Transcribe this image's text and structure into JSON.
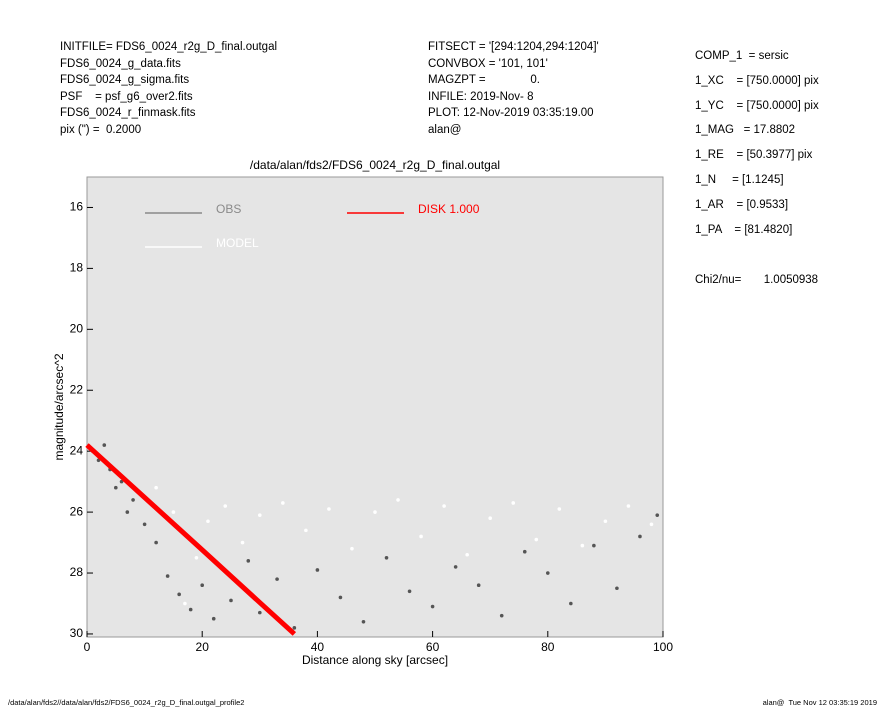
{
  "info_left": [
    "INITFILE= FDS6_0024_r2g_D_final.outgal",
    "FDS6_0024_g_data.fits",
    "FDS6_0024_g_sigma.fits",
    "PSF    = psf_g6_over2.fits",
    "FDS6_0024_r_finmask.fits",
    "pix (\") =  0.2000"
  ],
  "info_middle": [
    "FITSECT = '[294:1204,294:1204]'",
    "CONVBOX = '101, 101'",
    "MAGZPT =              0.",
    "INFILE: 2019-Nov- 8",
    "PLOT: 12-Nov-2019 03:35:19.00",
    "alan@"
  ],
  "info_right": [
    "COMP_1  = sersic",
    "1_XC    = [750.0000] pix",
    "1_YC    = [750.0000] pix",
    "1_MAG   = 17.8802",
    "1_RE    = [50.3977] pix",
    "1_N     = [1.1245]",
    "1_AR    = [0.9533]",
    "1_PA    = [81.4820]"
  ],
  "chi2": "Chi2/nu=       1.0050938",
  "footer_left": "/data/alan/fds2//data/alan/fds2/FDS6_0024_r2g_D_final.outgal_profile2",
  "footer_right": "alan@  Tue Nov 12 03:35:19 2019",
  "chart_data": {
    "type": "scatter",
    "title": "/data/alan/fds2/FDS6_0024_r2g_D_final.outgal",
    "x_label": "Distance along sky [arcsec]",
    "y_label": "magnitude/arcsec^2",
    "xlim": [
      0,
      100
    ],
    "xticks": [
      0,
      20,
      40,
      60,
      80,
      100
    ],
    "ylim": [
      30.1,
      15
    ],
    "yticks": [
      16,
      18,
      20,
      22,
      24,
      26,
      28,
      30
    ],
    "series": [
      {
        "name": "OBS",
        "color": "#555555",
        "mode": "points",
        "x": [
          1,
          2,
          3,
          4,
          5,
          6,
          7,
          8,
          10,
          12,
          14,
          16,
          18,
          20,
          22,
          25,
          28,
          30,
          33,
          36,
          40,
          44,
          48,
          52,
          56,
          60,
          64,
          68,
          72,
          76,
          80,
          84,
          88,
          92,
          96,
          99
        ],
        "values": [
          24.0,
          24.3,
          23.8,
          24.6,
          25.2,
          25.0,
          26.0,
          25.6,
          26.4,
          27.0,
          28.1,
          28.7,
          29.2,
          28.4,
          29.5,
          28.9,
          27.6,
          29.3,
          28.2,
          29.8,
          27.9,
          28.8,
          29.6,
          27.5,
          28.6,
          29.1,
          27.8,
          28.4,
          29.4,
          27.3,
          28.0,
          29.0,
          27.1,
          28.5,
          26.8,
          26.1
        ]
      },
      {
        "name": "MODEL",
        "color": "#ffffff",
        "mode": "points",
        "x": [
          12,
          15,
          17,
          19,
          21,
          24,
          27,
          30,
          34,
          38,
          42,
          46,
          50,
          54,
          58,
          62,
          66,
          70,
          74,
          78,
          82,
          86,
          90,
          94,
          98
        ],
        "values": [
          25.2,
          26.0,
          29.0,
          27.5,
          26.3,
          25.8,
          27.0,
          26.1,
          25.7,
          26.6,
          25.9,
          27.2,
          26.0,
          25.6,
          26.8,
          25.8,
          27.4,
          26.2,
          25.7,
          26.9,
          25.9,
          27.1,
          26.3,
          25.8,
          26.4
        ]
      },
      {
        "name": "DISK  1.000",
        "color": "#ff0000",
        "mode": "line",
        "x": [
          0,
          10,
          20,
          30,
          36
        ],
        "values": [
          23.8,
          25.52,
          27.24,
          28.97,
          30.0
        ]
      }
    ]
  }
}
